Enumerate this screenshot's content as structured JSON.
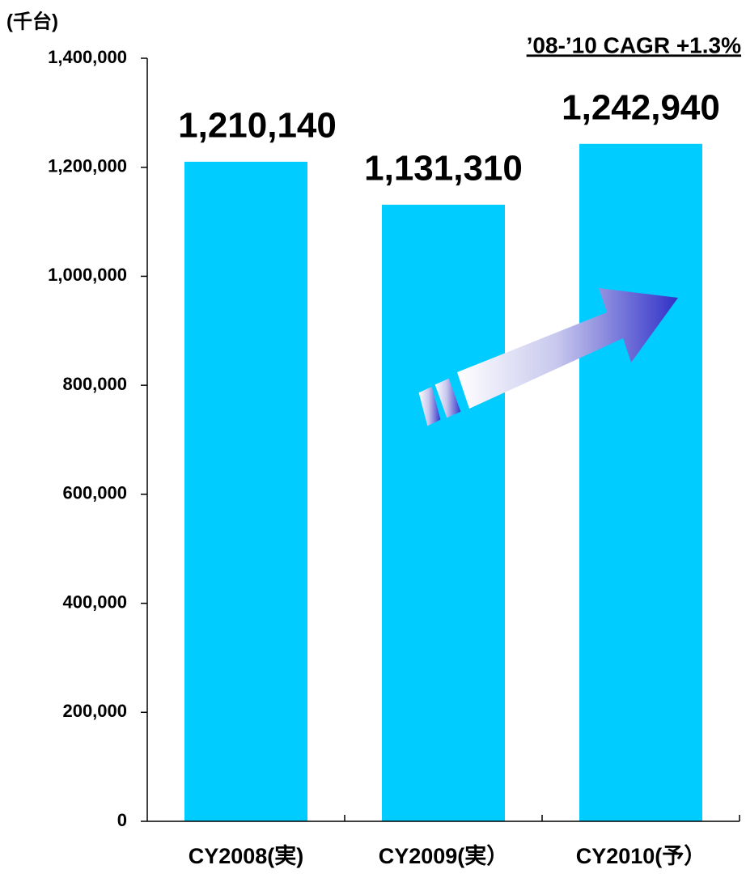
{
  "chart_data": {
    "type": "bar",
    "unit_label": "(千台)",
    "annotation": "’08-’10 CAGR +1.3%",
    "categories": [
      "CY2008(実)",
      "CY2009(実）",
      "CY2010(予）"
    ],
    "values": [
      1210140,
      1131310,
      1242940
    ],
    "value_labels": [
      "1,210,140",
      "1,131,310",
      "1,242,940"
    ],
    "color": "#00ccff",
    "ylim": [
      0,
      1400000
    ],
    "yticks": [
      0,
      {
        "value": 200000,
        "label": "200,000"
      },
      {
        "value": 400000,
        "label": "400,000"
      },
      {
        "value": 600000,
        "label": "600,000"
      },
      {
        "value": 800000,
        "label": "800,000"
      },
      {
        "value": 1000000,
        "label": "1,000,000"
      },
      {
        "value": 1200000,
        "label": "1,200,000"
      },
      {
        "value": 1400000,
        "label": "1,400,000"
      }
    ],
    "grid": false
  }
}
